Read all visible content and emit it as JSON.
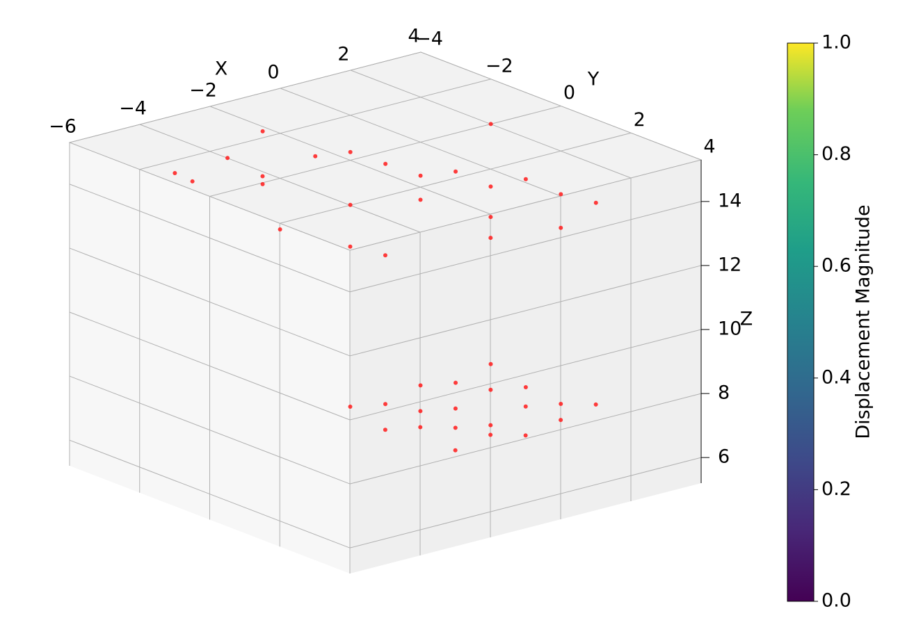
{
  "chart_data": {
    "type": "scatter3d",
    "xlabel": "X",
    "ylabel": "Y",
    "zlabel": "Z",
    "xlim": [
      -6,
      4
    ],
    "ylim": [
      -4,
      4
    ],
    "zlim": [
      5.2,
      15.3
    ],
    "xticks": [
      {
        "value": -6,
        "label": "−6"
      },
      {
        "value": -4,
        "label": "−4"
      },
      {
        "value": -2,
        "label": "−2"
      },
      0,
      2,
      4
    ],
    "yticks": [
      {
        "value": -4,
        "label": "−4"
      },
      {
        "value": -2,
        "label": "−2"
      },
      0,
      2,
      4
    ],
    "zticks": [
      6,
      8,
      10,
      12,
      14
    ],
    "grid": true,
    "series": [
      {
        "color": "#ff1a1a",
        "x": [
          -4,
          -3.5,
          -3,
          -2.5,
          -2,
          -1.5,
          -1,
          -0.5,
          0,
          0.5,
          1,
          1.5,
          2,
          2.5,
          3,
          -3,
          -2,
          -1,
          0,
          1,
          2,
          -1.5,
          0.5,
          3,
          -2,
          -1,
          0,
          1,
          2,
          -2,
          -1,
          0,
          1,
          2,
          -2,
          -1,
          0,
          1,
          2,
          -2,
          -1,
          0,
          1,
          2
        ],
        "y": [
          -3,
          -3,
          -2.5,
          -2,
          -2.5,
          -3,
          -2,
          -1.5,
          -1,
          -0.5,
          0,
          0.5,
          1,
          1.5,
          2,
          -1,
          0,
          -1,
          0,
          1,
          2,
          0.5,
          1.5,
          -1,
          0,
          0,
          0,
          0,
          0,
          1,
          1,
          1,
          1,
          1,
          2,
          2,
          2,
          2,
          2,
          3,
          3,
          3,
          3,
          3
        ],
        "z": [
          14.2,
          13.8,
          14.6,
          14.1,
          13.5,
          14.8,
          14.3,
          14.5,
          14.2,
          13.9,
          14.1,
          13.7,
          14,
          13.6,
          13.4,
          13,
          12.6,
          13.2,
          13.5,
          13.1,
          12.9,
          12.4,
          12.8,
          14.6,
          7.6,
          7.4,
          7.7,
          7.5,
          7.8,
          7.3,
          7.6,
          7.4,
          7.7,
          7.5,
          7.8,
          7.5,
          7.3,
          7.6,
          7.4,
          7.5,
          7.7,
          7.4,
          7.6,
          7.8
        ]
      }
    ],
    "colorbar": {
      "label": "Displacement Magnitude",
      "lim": [
        0,
        1
      ],
      "ticks": [
        {
          "value": 0,
          "label": "0.0"
        },
        {
          "value": 0.2,
          "label": "0.2"
        },
        {
          "value": 0.4,
          "label": "0.4"
        },
        {
          "value": 0.6,
          "label": "0.6"
        },
        {
          "value": 0.8,
          "label": "0.8"
        },
        {
          "value": 1,
          "label": "1.0"
        }
      ]
    }
  }
}
